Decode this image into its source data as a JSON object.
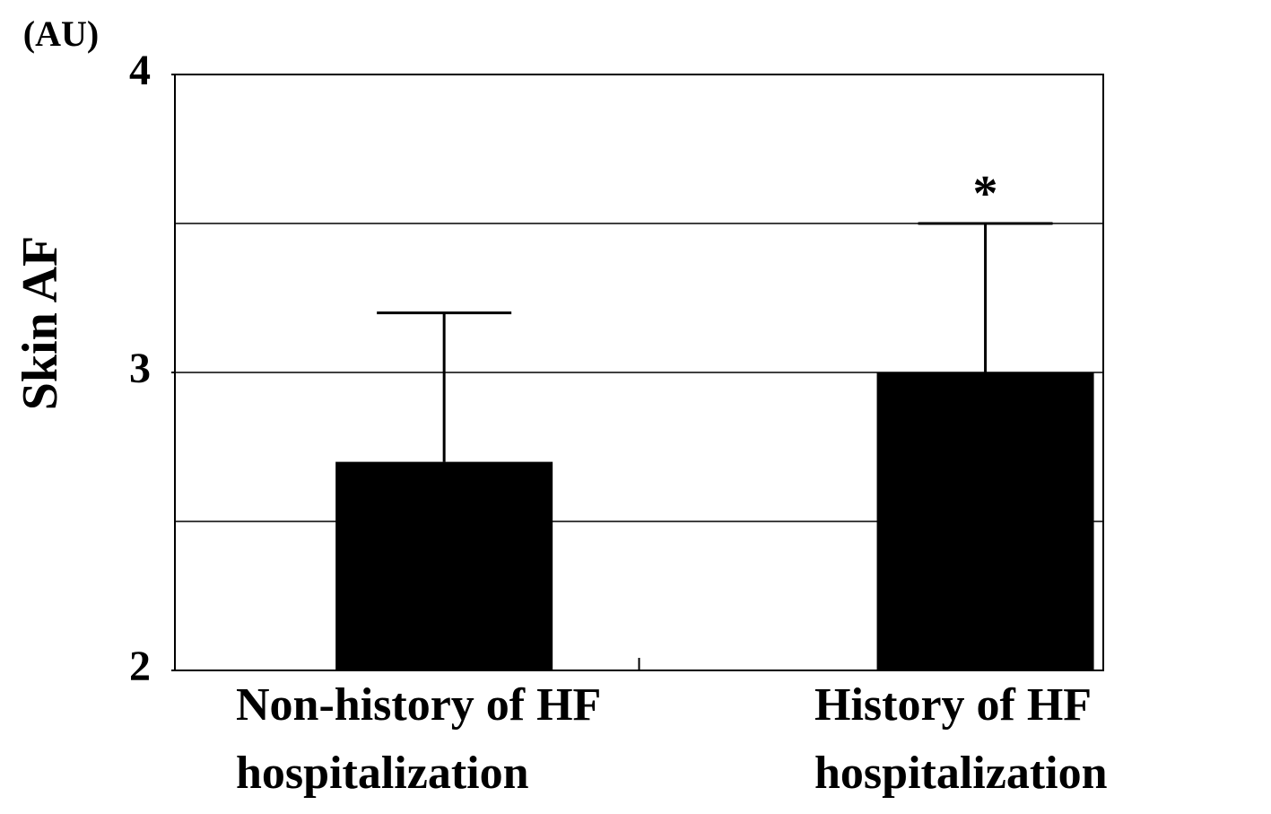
{
  "chart_data": {
    "type": "bar",
    "y_label": "Skin AF",
    "y_unit": "(AU)",
    "categories": [
      [
        "Non-history of HF",
        "hospitalization"
      ],
      [
        "History of HF",
        "hospitalization"
      ]
    ],
    "values": [
      2.7,
      3.0
    ],
    "errors": [
      0.5,
      0.5
    ],
    "color": "#000000",
    "annotations": [
      null,
      "*"
    ],
    "ylim": [
      2,
      4
    ],
    "yticks": [
      2,
      3,
      4
    ],
    "gridlines": [
      2.5,
      3,
      3.5
    ]
  }
}
